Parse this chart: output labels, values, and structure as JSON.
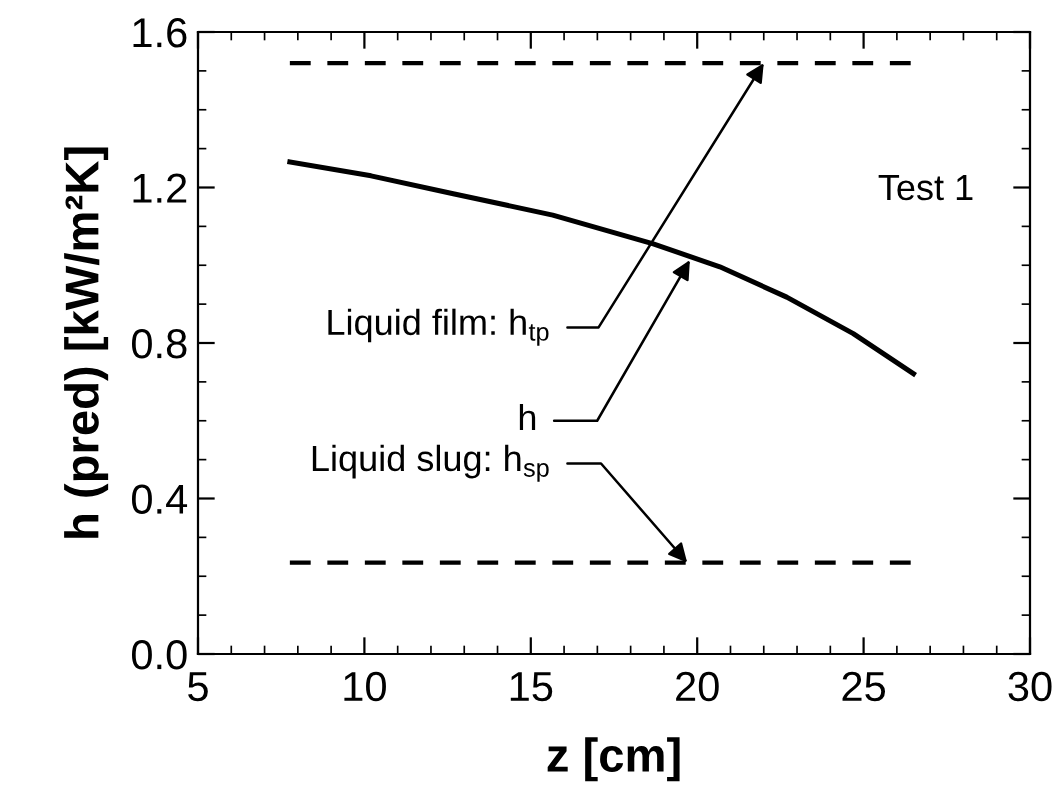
{
  "chart_data": {
    "type": "line",
    "xlabel": "z [cm]",
    "ylabel": "h (pred) [kW/m²K]",
    "x": [
      7.76,
      10.2,
      12.67,
      15.66,
      18.68,
      20.68,
      22.69,
      24.69,
      26.5
    ],
    "series": [
      {
        "color": "#000000",
        "values": [
          1.266,
          1.23,
          1.184,
          1.129,
          1.055,
          0.996,
          0.918,
          0.824,
          0.721
        ]
      }
    ],
    "xlim": [
      5,
      30
    ],
    "xticks": [
      5,
      10,
      15,
      20,
      25,
      30
    ],
    "ylim": [
      0,
      1.6
    ],
    "yticks": [
      {
        "value": 0,
        "label": "0.0"
      },
      0.4,
      0.8,
      1.2,
      1.6
    ],
    "ref_lines": [
      {
        "axis": "y",
        "value": 1.52,
        "color": "#000000",
        "line_style": "dashed"
      },
      {
        "axis": "y",
        "value": 0.235,
        "color": "#000000",
        "line_style": "dashed"
      }
    ],
    "annotations": [
      {
        "text": "Liquid film: h$_{tp}$",
        "x": 22,
        "y": 1.52
      },
      {
        "text": "h",
        "x": 19.78,
        "y": 1.013
      },
      {
        "text": "Liquid slug: h$_{sp}$",
        "x": 19.7,
        "y": 0.235
      },
      "Test 1"
    ],
    "grid": false,
    "marker": "none",
    "line_style": "solid"
  }
}
